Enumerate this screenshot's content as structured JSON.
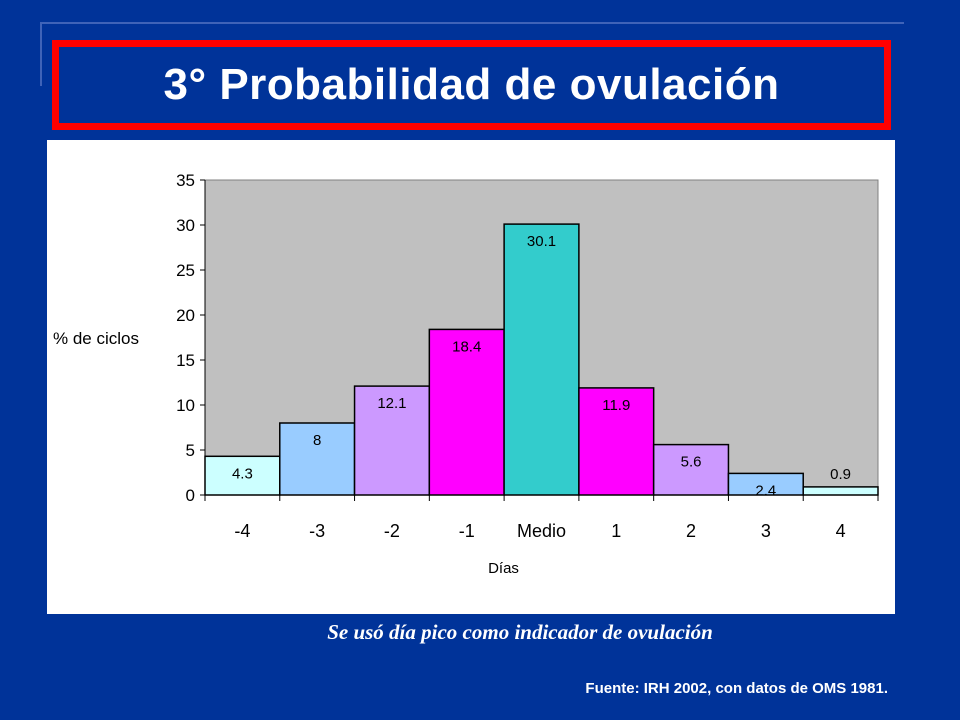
{
  "title": "3° Probabilidad de ovulación",
  "caption": "Se usó día pico como indicador de ovulación",
  "source": "Fuente: IRH 2002, con datos de OMS 1981.",
  "colors": {
    "background": "#003399",
    "title_border": "#ff0000",
    "plot_area": "#c0c0c0",
    "panel": "#ffffff"
  },
  "chart_data": {
    "type": "bar",
    "categories": [
      "-4",
      "-3",
      "-2",
      "-1",
      "Medio",
      "1",
      "2",
      "3",
      "4"
    ],
    "values": [
      4.3,
      8,
      12.1,
      18.4,
      30.1,
      11.9,
      5.6,
      2.4,
      0.9
    ],
    "data_labels": [
      "4.3",
      "8",
      "12.1",
      "18.4",
      "30.1",
      "11.9",
      "5.6",
      "2.4",
      "0.9"
    ],
    "bar_colors": [
      "#ccffff",
      "#99ccff",
      "#cc99ff",
      "#ff00ff",
      "#33cccc",
      "#ff00ff",
      "#cc99ff",
      "#99ccff",
      "#ccffff"
    ],
    "title": "",
    "xlabel": "Días",
    "ylabel": "% de ciclos",
    "ylim": [
      0,
      35
    ],
    "yticks": [
      0,
      5,
      10,
      15,
      20,
      25,
      30,
      35
    ],
    "grid": false,
    "legend": "none"
  }
}
